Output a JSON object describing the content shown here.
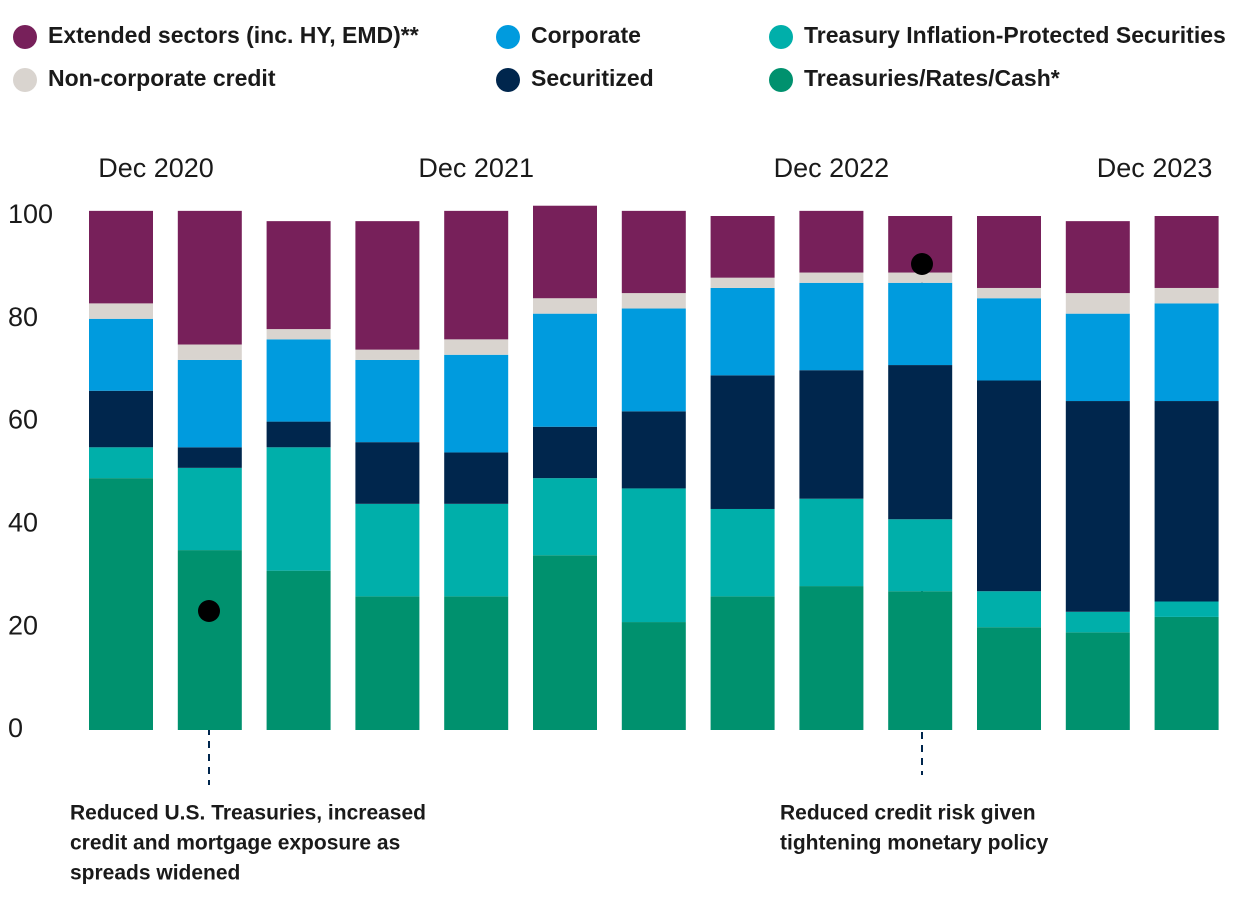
{
  "chart_data": {
    "type": "bar",
    "stacked": true,
    "categories": [
      "Dec 2020",
      null,
      null,
      null,
      "Dec 2021",
      null,
      null,
      null,
      "Dec 2022",
      null,
      null,
      null,
      "Dec 2023"
    ],
    "series": [
      {
        "name": "Treasuries/Rates/Cash*",
        "color": "#00916e",
        "values": [
          49,
          35,
          31,
          26,
          26,
          34,
          21,
          26,
          28,
          27,
          20,
          19,
          22
        ]
      },
      {
        "name": "Treasury Inflation-Protected Securities",
        "color": "#00afaa",
        "values": [
          6,
          16,
          24,
          18,
          18,
          15,
          26,
          17,
          17,
          14,
          7,
          4,
          3
        ]
      },
      {
        "name": "Securitized",
        "color": "#00264d",
        "values": [
          11,
          4,
          5,
          12,
          10,
          10,
          15,
          26,
          25,
          30,
          41,
          41,
          39
        ]
      },
      {
        "name": "Corporate",
        "color": "#009bde",
        "values": [
          14,
          17,
          16,
          16,
          19,
          22,
          20,
          17,
          17,
          16,
          16,
          17,
          19
        ]
      },
      {
        "name": "Non-corporate credit",
        "color": "#d9d4cf",
        "values": [
          3,
          3,
          2,
          2,
          3,
          3,
          3,
          2,
          2,
          2,
          2,
          4,
          3
        ]
      },
      {
        "name": "Extended sectors (inc. HY, EMD)**",
        "color": "#77205a",
        "values": [
          18,
          26,
          21,
          25,
          25,
          18,
          16,
          12,
          12,
          11,
          14,
          14,
          14
        ]
      }
    ],
    "ylim": [
      0,
      102
    ],
    "yticks": [
      0,
      20,
      40,
      60,
      80,
      100
    ],
    "grid": false,
    "annotations": [
      [
        "Reduced U.S. Treasuries, increased",
        "credit and mortgage exposure as",
        "spreads widened"
      ],
      [
        "Reduced credit risk given",
        "tightening monetary policy"
      ]
    ]
  }
}
